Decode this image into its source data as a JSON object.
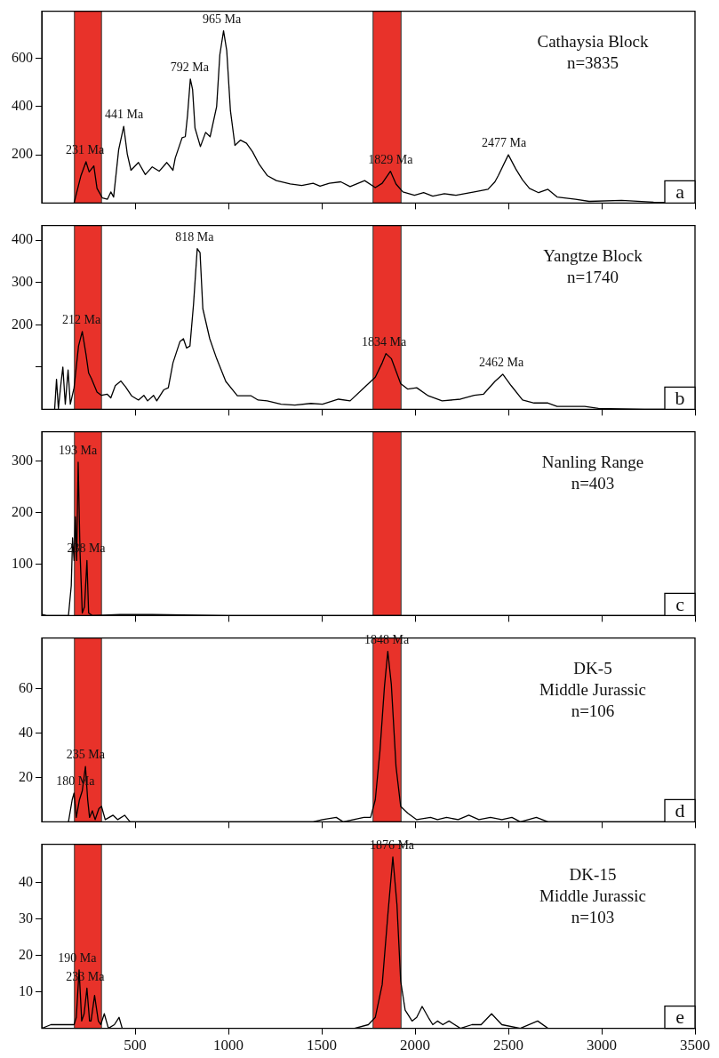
{
  "chart_data": [
    {
      "type": "line",
      "xlim": [
        0,
        3500
      ],
      "xticks": [
        500,
        1000,
        1500,
        2000,
        2500,
        3000,
        3500
      ],
      "ylim": [
        0,
        795
      ],
      "yticks": [
        200,
        400,
        600
      ],
      "tick_labels": "y",
      "marker": "none",
      "color": "#000000",
      "x": [
        173,
        210,
        237,
        254,
        279,
        296,
        325,
        352,
        370,
        385,
        412,
        439,
        458,
        478,
        518,
        555,
        592,
        629,
        670,
        703,
        715,
        752,
        769,
        781,
        796,
        808,
        821,
        850,
        878,
        902,
        937,
        954,
        974,
        991,
        1011,
        1035,
        1065,
        1097,
        1129,
        1166,
        1208,
        1257,
        1331,
        1393,
        1454,
        1491,
        1541,
        1602,
        1652,
        1730,
        1787,
        1824,
        1868,
        1898,
        1935,
        1997,
        2046,
        2095,
        2157,
        2219,
        2317,
        2391,
        2428,
        2446,
        2500,
        2540,
        2576,
        2613,
        2662,
        2712,
        2761,
        2860,
        2933,
        3106,
        3278,
        3475
      ],
      "values": [
        0,
        114,
        171,
        129,
        154,
        61,
        21,
        16,
        46,
        25,
        221,
        318,
        204,
        136,
        168,
        118,
        150,
        132,
        168,
        136,
        186,
        271,
        275,
        364,
        514,
        471,
        311,
        234,
        293,
        275,
        400,
        614,
        714,
        632,
        382,
        239,
        261,
        248,
        213,
        159,
        114,
        93,
        79,
        73,
        82,
        70,
        82,
        88,
        68,
        93,
        64,
        82,
        132,
        79,
        46,
        32,
        43,
        29,
        39,
        32,
        46,
        57,
        88,
        114,
        200,
        141,
        96,
        61,
        43,
        57,
        25,
        16,
        7,
        11,
        4,
        0
      ],
      "bands": [
        {
          "axis": "x",
          "from": 175,
          "to": 320,
          "color": "#e8322a"
        },
        {
          "axis": "x",
          "from": 1775,
          "to": 1925,
          "color": "#e8322a"
        }
      ],
      "annotations": [
        "Cathaysia Block",
        "n=3835",
        {
          "text": "231 Ma",
          "x": 231,
          "y": 171
        },
        {
          "text": "441 Ma",
          "x": 441,
          "y": 318
        },
        {
          "text": "792 Ma",
          "x": 792,
          "y": 514
        },
        {
          "text": "965 Ma",
          "x": 965,
          "y": 714
        },
        {
          "text": "1829 Ma",
          "x": 1868,
          "y": 132
        },
        {
          "text": "2477 Ma",
          "x": 2477,
          "y": 200
        },
        "a"
      ]
    },
    {
      "type": "line",
      "xlim": [
        0,
        3500
      ],
      "xticks": [
        500,
        1000,
        1500,
        2000,
        2500,
        3000,
        3500
      ],
      "ylim": [
        0,
        435
      ],
      "yticks": [
        {
          "value": 100,
          "label": null
        },
        200,
        300,
        400
      ],
      "tick_labels": "y",
      "marker": "none",
      "color": "#000000",
      "x": [
        69,
        79,
        89,
        104,
        113,
        126,
        141,
        153,
        173,
        197,
        217,
        237,
        251,
        266,
        296,
        320,
        350,
        370,
        394,
        424,
        449,
        481,
        518,
        547,
        567,
        599,
        616,
        653,
        678,
        703,
        740,
        759,
        776,
        794,
        813,
        833,
        848,
        863,
        900,
        937,
        986,
        1048,
        1122,
        1159,
        1208,
        1282,
        1356,
        1442,
        1504,
        1590,
        1652,
        1726,
        1787,
        1824,
        1844,
        1873,
        1923,
        1960,
        2009,
        2071,
        2145,
        2243,
        2317,
        2367,
        2428,
        2470,
        2515,
        2576,
        2638,
        2712,
        2761,
        2909,
        2983,
        3229,
        3475
      ],
      "values": [
        0,
        71,
        2,
        66,
        100,
        12,
        93,
        12,
        51,
        150,
        184,
        130,
        86,
        73,
        41,
        33,
        36,
        27,
        56,
        67,
        53,
        32,
        22,
        33,
        20,
        33,
        20,
        46,
        51,
        110,
        160,
        167,
        145,
        150,
        248,
        380,
        371,
        238,
        167,
        120,
        66,
        32,
        32,
        22,
        20,
        12,
        10,
        14,
        12,
        24,
        20,
        51,
        76,
        110,
        132,
        120,
        61,
        48,
        51,
        32,
        20,
        24,
        33,
        36,
        66,
        83,
        56,
        22,
        15,
        15,
        7,
        7,
        2,
        0,
        0
      ],
      "bands": [
        {
          "axis": "x",
          "from": 175,
          "to": 320,
          "color": "#e8322a"
        },
        {
          "axis": "x",
          "from": 1775,
          "to": 1925,
          "color": "#e8322a"
        }
      ],
      "annotations": [
        "Yangtze Block",
        "n=1740",
        {
          "text": "212 Ma",
          "x": 212,
          "y": 184
        },
        {
          "text": "818 Ma",
          "x": 818,
          "y": 380
        },
        {
          "text": "1834 Ma",
          "x": 1834,
          "y": 132
        },
        {
          "text": "2462 Ma",
          "x": 2462,
          "y": 83
        },
        "b"
      ]
    },
    {
      "type": "line",
      "xlim": [
        0,
        3500
      ],
      "xticks": [
        500,
        1000,
        1500,
        2000,
        2500,
        3000,
        3500
      ],
      "ylim": [
        0,
        357
      ],
      "yticks": [
        100,
        200,
        300
      ],
      "tick_labels": "y",
      "marker": "none",
      "color": "#000000",
      "x": [
        5,
        25,
        143,
        158,
        165,
        173,
        180,
        187,
        195,
        205,
        217,
        229,
        242,
        251,
        271,
        419,
        592,
        838,
        1011,
        3475
      ],
      "values": [
        2,
        0,
        0,
        58,
        151,
        107,
        192,
        107,
        298,
        123,
        5,
        17,
        107,
        5,
        0,
        2,
        2,
        1,
        0,
        0
      ],
      "bands": [
        {
          "axis": "x",
          "from": 175,
          "to": 320,
          "color": "#e8322a"
        },
        {
          "axis": "x",
          "from": 1775,
          "to": 1925,
          "color": "#e8322a"
        }
      ],
      "annotations": [
        "Nanling Range",
        "n=403",
        {
          "text": "193 Ma",
          "x": 193,
          "y": 298
        },
        {
          "text": "238 Ma",
          "x": 238,
          "y": 107
        },
        "c"
      ]
    },
    {
      "type": "line",
      "xlim": [
        0,
        3500
      ],
      "xticks": [
        500,
        1000,
        1500,
        2000,
        2500,
        3000,
        3500
      ],
      "ylim": [
        0,
        83
      ],
      "yticks": [
        20,
        40,
        60
      ],
      "tick_labels": "y",
      "marker": "none",
      "color": "#000000",
      "x": [
        143,
        163,
        173,
        185,
        202,
        217,
        234,
        246,
        256,
        271,
        286,
        306,
        320,
        340,
        382,
        407,
        444,
        473,
        1011,
        1454,
        1504,
        1578,
        1615,
        1726,
        1762,
        1787,
        1812,
        1836,
        1854,
        1873,
        1898,
        1923,
        1960,
        2009,
        2083,
        2120,
        2169,
        2231,
        2288,
        2342,
        2404,
        2465,
        2519,
        2564,
        2650,
        2712,
        3475
      ],
      "values": [
        0,
        10,
        13,
        2,
        10,
        14,
        25,
        10,
        2,
        5,
        1,
        6,
        7,
        1,
        3,
        1,
        3,
        0,
        0,
        0,
        1,
        2,
        0,
        2,
        2,
        10,
        32,
        61,
        77,
        62,
        25,
        7,
        4,
        1,
        2,
        1,
        2,
        1,
        3,
        1,
        2,
        1,
        2,
        0,
        2,
        0,
        0
      ],
      "bands": [
        {
          "axis": "x",
          "from": 175,
          "to": 320,
          "color": "#e8322a"
        },
        {
          "axis": "x",
          "from": 1775,
          "to": 1925,
          "color": "#e8322a"
        }
      ],
      "annotations": [
        "DK-5",
        "Middle Jurassic",
        "n=106",
        {
          "text": "1848 Ma",
          "x": 1848,
          "y": 77
        },
        {
          "text": "235 Ma",
          "x": 235,
          "y": 25
        },
        {
          "text": "180 Ma",
          "x": 180,
          "y": 13
        },
        "d"
      ]
    },
    {
      "type": "line",
      "xlim": [
        0,
        3500
      ],
      "xticks": [
        500,
        1000,
        1500,
        2000,
        2500,
        3000,
        3500
      ],
      "ylim": [
        0,
        50.5
      ],
      "yticks": [
        10,
        20,
        30,
        40
      ],
      "marker": "none",
      "color": "#000000",
      "x": [
        0,
        49,
        173,
        185,
        200,
        214,
        227,
        242,
        256,
        264,
        283,
        303,
        316,
        335,
        357,
        389,
        414,
        431,
        518,
        1504,
        1676,
        1750,
        1787,
        1824,
        1854,
        1881,
        1903,
        1923,
        1947,
        1984,
        2009,
        2038,
        2071,
        2095,
        2120,
        2149,
        2182,
        2243,
        2305,
        2354,
        2410,
        2465,
        2564,
        2657,
        2712,
        2810
      ],
      "values": [
        0,
        1,
        1,
        3,
        16,
        2,
        4,
        11,
        2,
        2,
        9,
        2,
        1,
        4,
        0,
        1,
        3,
        0,
        0,
        0,
        0,
        1,
        3,
        12,
        31,
        47,
        34,
        13,
        5,
        2,
        3,
        6,
        3,
        1,
        2,
        1,
        2,
        0,
        1,
        1,
        4,
        1,
        0,
        2,
        0,
        0
      ],
      "bands": [
        {
          "axis": "x",
          "from": 175,
          "to": 320,
          "color": "#e8322a"
        },
        {
          "axis": "x",
          "from": 1775,
          "to": 1925,
          "color": "#e8322a"
        }
      ],
      "annotations": [
        "DK-15",
        "Middle Jurassic",
        "n=103",
        {
          "text": "1876 Ma",
          "x": 1876,
          "y": 47
        },
        {
          "text": "190 Ma",
          "x": 190,
          "y": 16
        },
        {
          "text": "233 Ma",
          "x": 233,
          "y": 11
        },
        "e"
      ]
    }
  ]
}
